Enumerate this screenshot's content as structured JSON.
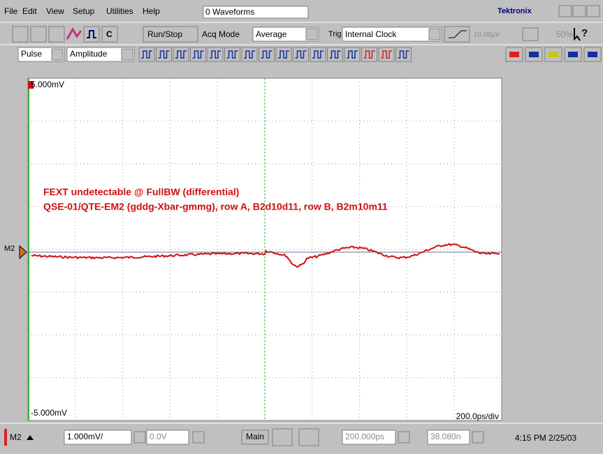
{
  "menu": {
    "items": [
      "File",
      "Edit",
      "View",
      "Setup",
      "Utilities",
      "Help"
    ],
    "waveforms": "0 Waveforms",
    "brand": "Tektronix"
  },
  "toolbar": {
    "c": "C",
    "run_stop": "Run/Stop",
    "acq_mode": "Acq Mode",
    "acq_value": "Average",
    "trig": "Trig",
    "trig_source": "Internal Clock",
    "trig_level": "10.00µV",
    "percent": "50%",
    "help": "?"
  },
  "measure_bar": {
    "pulse": "Pulse",
    "amplitude": "Amplitude"
  },
  "plot": {
    "top_label": "5.000mV",
    "bottom_label": "-5.000mV",
    "timebase": "200.0ps/div",
    "marker": "M2",
    "annotation": [
      "FEXT undetectable @ FullBW (differential)",
      "QSE-01/QTE-EM2 (gddg-Xbar-gmmg), row A, B2d10d11, row B, B2m10m11"
    ]
  },
  "status": {
    "channel": "M2",
    "scale": "1.000mV/",
    "offset": "0.0V",
    "main": "Main",
    "position": "200.000ps",
    "delay": "38.080n",
    "datetime": "4:15 PM 2/25/03"
  }
}
